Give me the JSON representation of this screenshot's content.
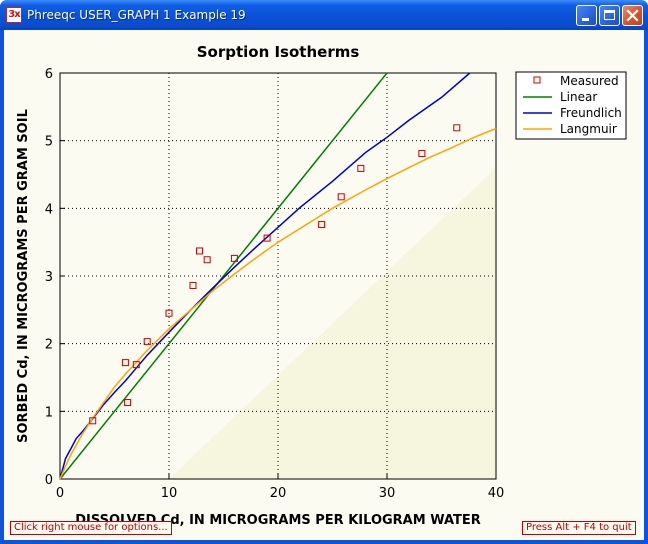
{
  "window": {
    "icon_label": "3x",
    "title": "Phreeqc USER_GRAPH 1 Example 19"
  },
  "status": {
    "left_hint": "Click right mouse for options...",
    "right_hint": "Press Alt + F4 to quit"
  },
  "colors": {
    "measured": "#cc0000",
    "linear": "#008000",
    "freundlich": "#0000cc",
    "langmuir": "#ffa500",
    "plot_background": "#fbfbf1"
  },
  "chart_data": {
    "type": "scatter",
    "title": "Sorption Isotherms",
    "xlabel": "DISSOLVED Cd, IN MICROGRAMS PER KILOGRAM WATER",
    "ylabel": "SORBED Cd, IN MICROGRAMS PER GRAM SOIL",
    "xlim": [
      0,
      40
    ],
    "ylim": [
      0,
      6
    ],
    "xticks": [
      "0",
      "10",
      "20",
      "30",
      "40"
    ],
    "yticks": [
      "0",
      "1",
      "2",
      "3",
      "4",
      "5",
      "6"
    ],
    "grid": true,
    "legend_position": "top-right",
    "series": [
      {
        "name": "Measured",
        "marker": "open-square",
        "points": [
          [
            3.0,
            0.86
          ],
          [
            6.0,
            1.72
          ],
          [
            6.2,
            1.13
          ],
          [
            7.0,
            1.69
          ],
          [
            8.0,
            2.03
          ],
          [
            10.0,
            2.45
          ],
          [
            12.2,
            2.86
          ],
          [
            12.8,
            3.37
          ],
          [
            13.5,
            3.24
          ],
          [
            16.0,
            3.26
          ],
          [
            19.0,
            3.56
          ],
          [
            24.0,
            3.76
          ],
          [
            25.8,
            4.17
          ],
          [
            27.6,
            4.59
          ],
          [
            33.2,
            4.81
          ],
          [
            36.4,
            5.19
          ]
        ]
      },
      {
        "name": "Linear",
        "line": true,
        "points": [
          [
            0,
            0
          ],
          [
            30,
            6.0
          ]
        ]
      },
      {
        "name": "Freundlich",
        "line": true,
        "points": [
          [
            0,
            0
          ],
          [
            0.5,
            0.3
          ],
          [
            1,
            0.45
          ],
          [
            1.5,
            0.6
          ],
          [
            2,
            0.69
          ],
          [
            3,
            0.89
          ],
          [
            4,
            1.1
          ],
          [
            5,
            1.28
          ],
          [
            6,
            1.45
          ],
          [
            8,
            1.83
          ],
          [
            10,
            2.17
          ],
          [
            12,
            2.5
          ],
          [
            14,
            2.82
          ],
          [
            16,
            3.13
          ],
          [
            18,
            3.43
          ],
          [
            20,
            3.72
          ],
          [
            22,
            4.01
          ],
          [
            25,
            4.4
          ],
          [
            28,
            4.82
          ],
          [
            30,
            5.05
          ],
          [
            32,
            5.3
          ],
          [
            35,
            5.64
          ],
          [
            37.6,
            6.0
          ]
        ]
      },
      {
        "name": "Langmuir",
        "line": true,
        "points": [
          [
            0,
            0
          ],
          [
            0.5,
            0.19
          ],
          [
            1,
            0.36
          ],
          [
            2,
            0.65
          ],
          [
            3,
            0.9
          ],
          [
            4,
            1.13
          ],
          [
            5,
            1.36
          ],
          [
            6,
            1.55
          ],
          [
            8,
            1.9
          ],
          [
            10,
            2.22
          ],
          [
            12,
            2.5
          ],
          [
            14,
            2.78
          ],
          [
            16,
            3.03
          ],
          [
            18,
            3.27
          ],
          [
            20,
            3.5
          ],
          [
            22,
            3.7
          ],
          [
            25,
            4.0
          ],
          [
            28,
            4.27
          ],
          [
            30,
            4.44
          ],
          [
            32,
            4.6
          ],
          [
            34,
            4.76
          ],
          [
            36,
            4.9
          ],
          [
            38,
            5.05
          ],
          [
            40,
            5.18
          ]
        ]
      }
    ]
  }
}
